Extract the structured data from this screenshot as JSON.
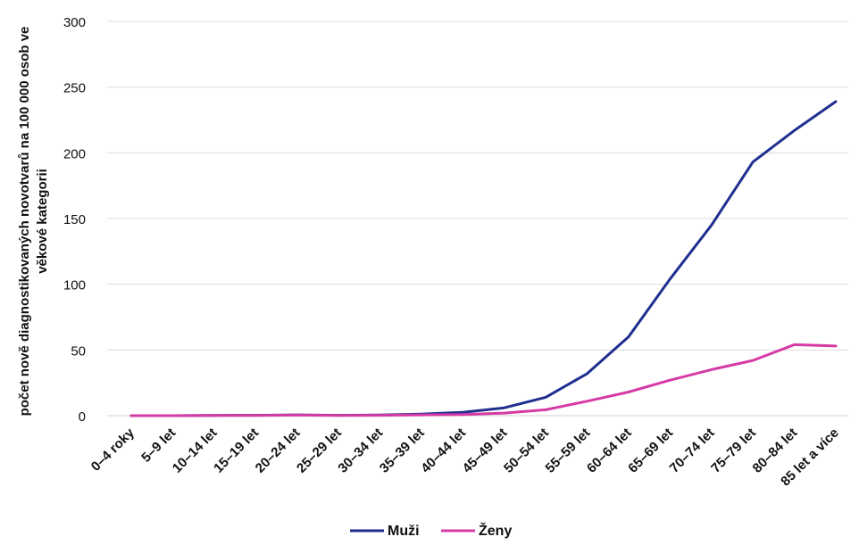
{
  "chart_data": {
    "type": "line",
    "ylabel_lines": [
      "počet nově diagnostikovaných novotvarů na 100 000 osob ve",
      "věkové kategorii"
    ],
    "ylim": [
      0,
      300
    ],
    "yticks": [
      0,
      50,
      100,
      150,
      200,
      250,
      300
    ],
    "grid": true,
    "legend_position": "bottom-center",
    "categories": [
      "0–4 roky",
      "5–9 let",
      "10–14 let",
      "15–19 let",
      "20–24 let",
      "25–29 let",
      "30–34 let",
      "35–39 let",
      "40–44 let",
      "45–49 let",
      "50–54 let",
      "55–59 let",
      "60–64 let",
      "65–69 let",
      "70–74 let",
      "75–79 let",
      "80–84 let",
      "85 let a více"
    ],
    "series": [
      {
        "name": "Muži",
        "color": "#1f2f8f",
        "values": [
          0,
          0,
          0.2,
          0.3,
          0.6,
          0.3,
          0.5,
          1.2,
          2.5,
          6,
          14,
          32,
          60,
          104,
          145,
          193,
          217,
          239
        ]
      },
      {
        "name": "Ženy",
        "color": "#d63aa5",
        "values": [
          0,
          0,
          0.2,
          0.2,
          0.4,
          0.2,
          0.3,
          0.6,
          0.8,
          2,
          4.5,
          11,
          18,
          27,
          35,
          42,
          54,
          53
        ]
      }
    ]
  }
}
